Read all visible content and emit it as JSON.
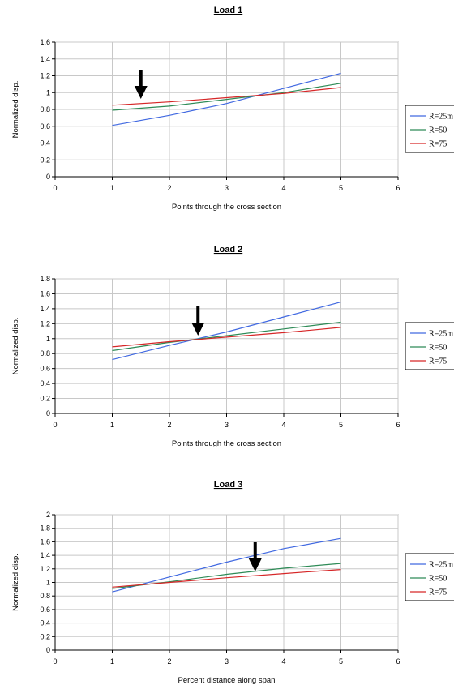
{
  "chart_data": [
    {
      "type": "line",
      "title": "Load 1",
      "xlabel": "Points through the cross section",
      "ylabel": "Normalized disp.",
      "xlim": [
        0,
        6
      ],
      "ylim": [
        0,
        1.6
      ],
      "xticks": [
        "0",
        "1",
        "2",
        "3",
        "4",
        "5",
        "6"
      ],
      "yticks": [
        "0",
        "0.2",
        "0.4",
        "0.6",
        "0.8",
        "1",
        "1.2",
        "1.4",
        "1.6"
      ],
      "grid": true,
      "legend_position": "right",
      "arrow_at_x": 1.5,
      "x": [
        1,
        2,
        3,
        4,
        5
      ],
      "series": [
        {
          "name": "R=25m",
          "color": "#4169e1",
          "values": [
            0.61,
            0.73,
            0.87,
            1.05,
            1.23
          ]
        },
        {
          "name": "R=50",
          "color": "#2e8b57",
          "values": [
            0.79,
            0.84,
            0.92,
            1.0,
            1.11
          ]
        },
        {
          "name": "R=75",
          "color": "#d62728",
          "values": [
            0.85,
            0.89,
            0.94,
            0.99,
            1.06
          ]
        }
      ]
    },
    {
      "type": "line",
      "title": "Load 2",
      "xlabel": "Points through the cross section",
      "ylabel": "Normalized disp.",
      "xlim": [
        0,
        6
      ],
      "ylim": [
        0,
        1.8
      ],
      "xticks": [
        "0",
        "1",
        "2",
        "3",
        "4",
        "5",
        "6"
      ],
      "yticks": [
        "0",
        "0.2",
        "0.4",
        "0.6",
        "0.8",
        "1",
        "1.2",
        "1.4",
        "1.6",
        "1.8"
      ],
      "grid": true,
      "legend_position": "right",
      "arrow_at_x": 2.5,
      "x": [
        1,
        2,
        3,
        4,
        5
      ],
      "series": [
        {
          "name": "R=25m",
          "color": "#4169e1",
          "values": [
            0.72,
            0.91,
            1.09,
            1.29,
            1.49
          ]
        },
        {
          "name": "R=50",
          "color": "#2e8b57",
          "values": [
            0.84,
            0.95,
            1.04,
            1.13,
            1.22
          ]
        },
        {
          "name": "R=75",
          "color": "#d62728",
          "values": [
            0.89,
            0.96,
            1.02,
            1.08,
            1.15
          ]
        }
      ]
    },
    {
      "type": "line",
      "title": "Load 3",
      "xlabel": "Percent distance along span",
      "ylabel": "Normalized disp.",
      "xlim": [
        0,
        6
      ],
      "ylim": [
        0,
        2
      ],
      "xticks": [
        "0",
        "1",
        "2",
        "3",
        "4",
        "5",
        "6"
      ],
      "yticks": [
        "0",
        "0.2",
        "0.4",
        "0.6",
        "0.8",
        "1",
        "1.2",
        "1.4",
        "1.6",
        "1.8",
        "2"
      ],
      "grid": true,
      "legend_position": "right",
      "arrow_at_x": 3.5,
      "x": [
        1,
        2,
        3,
        4,
        5
      ],
      "series": [
        {
          "name": "R=25m",
          "color": "#4169e1",
          "values": [
            0.86,
            1.08,
            1.3,
            1.5,
            1.65
          ]
        },
        {
          "name": "R=50",
          "color": "#2e8b57",
          "values": [
            0.91,
            1.01,
            1.12,
            1.21,
            1.28
          ]
        },
        {
          "name": "R=75",
          "color": "#d62728",
          "values": [
            0.93,
            1.0,
            1.07,
            1.13,
            1.19
          ]
        }
      ]
    }
  ]
}
